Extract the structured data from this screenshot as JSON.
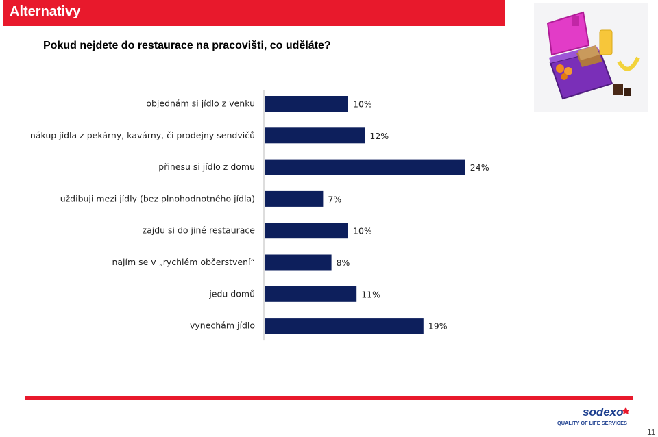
{
  "header": {
    "title": "Alternativy"
  },
  "question": "Pokud nejdete do restaurace na pracovišti, co uděláte?",
  "chart_data": {
    "type": "bar",
    "orientation": "horizontal",
    "categories": [
      "objednám si jídlo z venku",
      "nákup jídla z pekárny, kavárny, či prodejny sendvičů",
      "přinesu si jídlo z domu",
      "uždibuji mezi jídly (bez plnohodnotného jídla)",
      "zajdu si do jiné restaurace",
      "najím se v „rychlém občerstvení“",
      "jedu domů",
      "vynechám jídlo"
    ],
    "values": [
      10,
      12,
      24,
      7,
      10,
      8,
      11,
      19
    ],
    "value_labels": [
      "10%",
      "12%",
      "24%",
      "7%",
      "10%",
      "8%",
      "11%",
      "19%"
    ],
    "unit": "%",
    "bar_color": "#0d1f5c",
    "grid": false
  },
  "footer": {
    "logo_text": "sodexo",
    "tagline": "QUALITY OF LIFE SERVICES",
    "page_number": "11"
  },
  "colors": {
    "accent": "#e8192c",
    "bar": "#0d1f5c",
    "logo_blue": "#1d3f8f"
  }
}
